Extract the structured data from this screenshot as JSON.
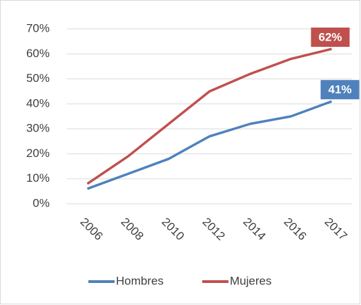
{
  "chart_data": {
    "type": "line",
    "categories": [
      "2006",
      "2008",
      "2010",
      "2012",
      "2014",
      "2016",
      "2017"
    ],
    "series": [
      {
        "name": "Hombres",
        "color": "#4f81bd",
        "values": [
          6,
          12,
          18,
          27,
          32,
          35,
          41
        ],
        "value_labels": [
          null,
          null,
          null,
          null,
          null,
          null,
          "41%"
        ]
      },
      {
        "name": "Mujeres",
        "color": "#c0504d",
        "values": [
          8,
          19,
          32,
          45,
          52,
          58,
          62
        ],
        "value_labels": [
          null,
          null,
          null,
          null,
          null,
          null,
          "62%"
        ]
      }
    ],
    "ylim": [
      0,
      70
    ],
    "yticks": [
      {
        "value": 0,
        "label": "0%"
      },
      {
        "value": 10,
        "label": "10%"
      },
      {
        "value": 20,
        "label": "20%"
      },
      {
        "value": 30,
        "label": "30%"
      },
      {
        "value": 40,
        "label": "40%"
      },
      {
        "value": 50,
        "label": "50%"
      },
      {
        "value": 60,
        "label": "60%"
      },
      {
        "value": 70,
        "label": "70%"
      }
    ],
    "grid": true,
    "legend": "bottom"
  }
}
